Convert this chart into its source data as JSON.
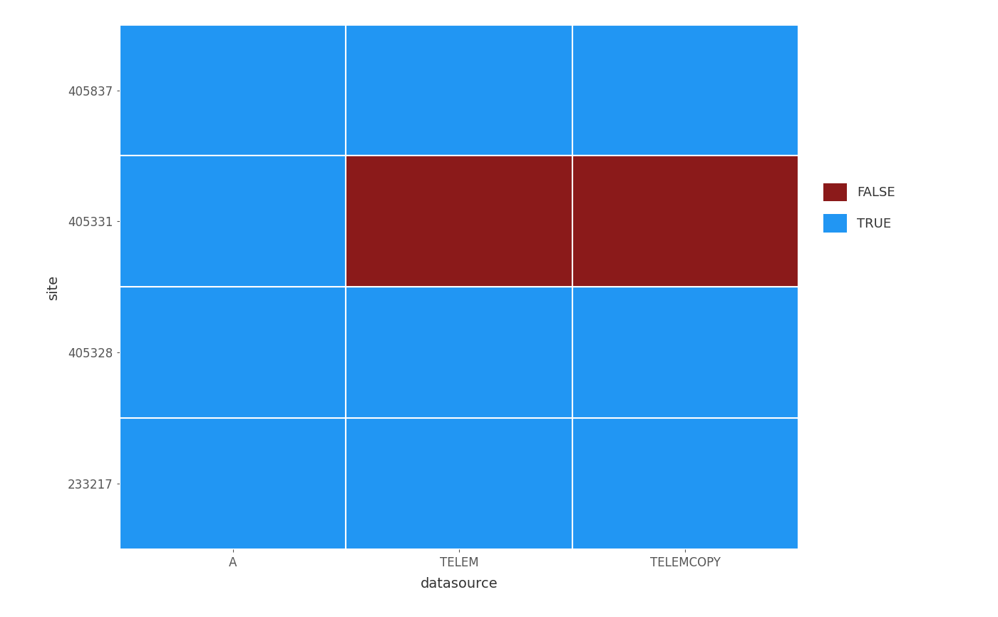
{
  "datasources": [
    "A",
    "TELEM",
    "TELEMCOPY"
  ],
  "sites": [
    "233217",
    "405328",
    "405331",
    "405837"
  ],
  "cells": {
    "A_233217": true,
    "A_405328": true,
    "A_405331": true,
    "A_405837": true,
    "TELEM_233217": true,
    "TELEM_405328": true,
    "TELEM_405331": false,
    "TELEM_405837": true,
    "TELEMCOPY_233217": true,
    "TELEMCOPY_405328": true,
    "TELEMCOPY_405331": false,
    "TELEMCOPY_405837": true
  },
  "color_false": "#8B1A1A",
  "color_true": "#2196F3",
  "outer_bg": "#FFFFFF",
  "panel_bg": "#EBEBEB",
  "grid_color": "#FFFFFF",
  "xlabel": "datasource",
  "ylabel": "site",
  "legend_false": "FALSE",
  "legend_true": "TRUE",
  "axis_fontsize": 14,
  "tick_fontsize": 12,
  "legend_fontsize": 13
}
